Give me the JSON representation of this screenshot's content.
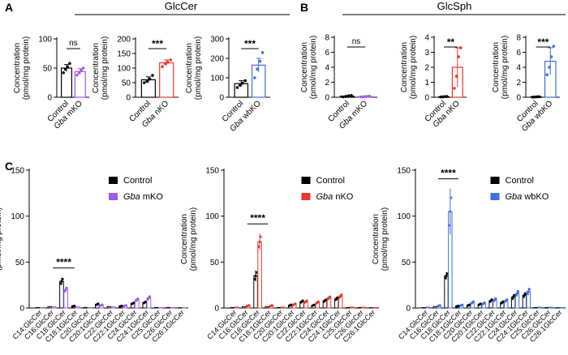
{
  "panel_labels": [
    "A",
    "B",
    "C"
  ],
  "headers": {
    "glccer": "GlcCer",
    "glcsph": "GlcSph"
  },
  "ylabel_line1": "Concentration",
  "ylabel_line2": "(pmol/mg protein)",
  "colors": {
    "control": "#000000",
    "mko": "#9d5cf0",
    "nko": "#e8372b",
    "wbko": "#3f6fe0"
  },
  "chart_data": [
    {
      "id": "A1",
      "type": "bar",
      "ylim": [
        0,
        100
      ],
      "yticks": [
        0,
        50,
        100
      ],
      "categories": [
        "Control",
        "Gba mKO"
      ],
      "gene": "Gba",
      "model": "mKO",
      "color_key": "mko",
      "values": [
        50,
        44
      ],
      "errors": [
        6,
        5
      ],
      "points": [
        [
          42,
          48,
          52,
          58
        ],
        [
          38,
          42,
          46,
          50
        ]
      ],
      "significance": "ns"
    },
    {
      "id": "A2",
      "type": "bar",
      "ylim": [
        0,
        200
      ],
      "yticks": [
        0,
        50,
        100,
        150,
        200
      ],
      "categories": [
        "Control",
        "Gba nKO"
      ],
      "gene": "Gba",
      "model": "nKO",
      "color_key": "nko",
      "values": [
        60,
        118
      ],
      "errors": [
        10,
        10
      ],
      "points": [
        [
          50,
          55,
          62,
          75
        ],
        [
          105,
          115,
          120,
          128
        ]
      ],
      "significance": "***"
    },
    {
      "id": "A3",
      "type": "bar",
      "ylim": [
        0,
        300
      ],
      "yticks": [
        0,
        100,
        200,
        300
      ],
      "categories": [
        "Control",
        "Gba wbKO"
      ],
      "gene": "Gba",
      "model": "wbKO",
      "color_key": "wbko",
      "values": [
        70,
        165
      ],
      "errors": [
        15,
        35
      ],
      "points": [
        [
          50,
          62,
          72,
          85
        ],
        [
          100,
          145,
          185,
          230
        ]
      ],
      "significance": "***"
    },
    {
      "id": "B1",
      "type": "bar",
      "ylim": [
        0,
        8
      ],
      "yticks": [
        0,
        2,
        4,
        6,
        8
      ],
      "categories": [
        "Control",
        "Gba mKO"
      ],
      "gene": "Gba",
      "model": "mKO",
      "color_key": "mko",
      "values": [
        0.15,
        0.1
      ],
      "errors": [
        0.08,
        0.05
      ],
      "points": [
        [
          0.05,
          0.1,
          0.2,
          0.25
        ],
        [
          0.05,
          0.08,
          0.12,
          0.15
        ]
      ],
      "significance": "ns"
    },
    {
      "id": "B2",
      "type": "bar",
      "ylim": [
        0,
        4
      ],
      "yticks": [
        0,
        1,
        2,
        3,
        4
      ],
      "categories": [
        "Control",
        "Gba nKO"
      ],
      "gene": "Gba",
      "model": "nKO",
      "color_key": "nko",
      "values": [
        0.03,
        2.0
      ],
      "errors": [
        0.02,
        1.3
      ],
      "points": [
        [
          0.02,
          0.03,
          0.04,
          0.05
        ],
        [
          0.6,
          1.4,
          2.7,
          3.3
        ]
      ],
      "significance": "**"
    },
    {
      "id": "B3",
      "type": "bar",
      "ylim": [
        0,
        8
      ],
      "yticks": [
        0,
        2,
        4,
        6,
        8
      ],
      "categories": [
        "Control",
        "Gba wbKO"
      ],
      "gene": "Gba",
      "model": "wbKO",
      "color_key": "wbko",
      "values": [
        0.05,
        4.8
      ],
      "errors": [
        0.03,
        1.8
      ],
      "points": [
        [
          0.02,
          0.04,
          0.06,
          0.08
        ],
        [
          3.0,
          4.0,
          5.4,
          6.8
        ]
      ],
      "significance": "***"
    },
    {
      "id": "C1",
      "type": "bar",
      "ylim": [
        0,
        150
      ],
      "yticks": [
        0,
        50,
        100,
        150
      ],
      "categories": [
        "C14:GlcCer",
        "C16:GlcCer",
        "C18:GlcCer",
        "C18:1GlcCer",
        "C20:GlcCer",
        "C20:1GlcCer",
        "C22:GlcCer",
        "C22:1GlcCer",
        "C24:GlcCer",
        "C24:1GlcCer",
        "C25:GlcCer",
        "C26:GlcCer",
        "C26:1GlcCer"
      ],
      "gene": "Gba",
      "model": "mKO",
      "color_key": "mko",
      "legend": [
        "Control",
        "Gba mKO"
      ],
      "series": [
        {
          "values": [
            0.5,
            1.5,
            29,
            2,
            0.6,
            4,
            1.5,
            2,
            5,
            6,
            0.5,
            0.5,
            0.3
          ],
          "errors": [
            0.2,
            0.4,
            4,
            0.5,
            0.2,
            1,
            0.4,
            0.5,
            1,
            1.2,
            0.2,
            0.2,
            0.1
          ]
        },
        {
          "values": [
            0.5,
            1.2,
            20,
            1.5,
            0.5,
            3,
            1.2,
            2.5,
            9,
            11,
            0.4,
            0.4,
            0.3
          ],
          "errors": [
            0.2,
            0.3,
            3,
            0.4,
            0.2,
            0.8,
            0.3,
            0.6,
            2,
            2.5,
            0.2,
            0.2,
            0.1
          ]
        }
      ],
      "significance": {
        "category_index": 2,
        "label": "****"
      }
    },
    {
      "id": "C2",
      "type": "bar",
      "ylim": [
        0,
        150
      ],
      "yticks": [
        0,
        50,
        100,
        150
      ],
      "categories": [
        "C14:GlcCer",
        "C16:GlcCer",
        "C18:GlcCer",
        "C18:1GlcCer",
        "C20:GlcCer",
        "C20:1GlcCer",
        "C22:GlcCer",
        "C22:1GlcCer",
        "C24:GlcCer",
        "C24:1GlcCer",
        "C25:GlcCer",
        "C26:GlcCer",
        "C26:1GlcCer"
      ],
      "gene": "Gba",
      "model": "nKO",
      "color_key": "nko",
      "legend": [
        "Control",
        "Gba nKO"
      ],
      "series": [
        {
          "values": [
            0.5,
            1.5,
            35,
            1.5,
            0.5,
            3,
            7,
            3,
            8,
            10,
            0.5,
            0.5,
            0.3
          ],
          "errors": [
            0.2,
            0.4,
            6,
            0.4,
            0.2,
            0.8,
            1.5,
            0.7,
            1.5,
            2,
            0.2,
            0.2,
            0.1
          ]
        },
        {
          "values": [
            1,
            2.5,
            72,
            2.5,
            1,
            4,
            7,
            6,
            11,
            13,
            1,
            0.8,
            0.5
          ],
          "errors": [
            0.3,
            0.6,
            9,
            0.6,
            0.3,
            1,
            1.5,
            1.5,
            2,
            2.5,
            0.3,
            0.2,
            0.2
          ]
        }
      ],
      "significance": {
        "category_index": 2,
        "label": "****"
      }
    },
    {
      "id": "C3",
      "type": "bar",
      "ylim": [
        0,
        150
      ],
      "yticks": [
        0,
        50,
        100,
        150
      ],
      "categories": [
        "C14:GlcCer",
        "C16:GlcCer",
        "C18:GlcCer",
        "C18:1GlcCer",
        "C20:GlcCer",
        "C20:1GlcCer",
        "C22:GlcCer",
        "C22:1GlcCer",
        "C24:GlcCer",
        "C24:1GlcCer",
        "C25:GlcCer",
        "C26:GlcCer",
        "C26:1GlcCer"
      ],
      "gene": "Gba",
      "model": "wbKO",
      "color_key": "wbko",
      "legend": [
        "Control",
        "Gba wbKO"
      ],
      "series": [
        {
          "values": [
            0.5,
            1.5,
            35,
            2,
            3,
            4,
            8,
            6,
            12,
            14,
            0.5,
            0.5,
            0.3
          ],
          "errors": [
            0.2,
            0.4,
            4,
            0.5,
            0.8,
            1,
            2,
            1.5,
            3,
            3,
            0.2,
            0.2,
            0.1
          ]
        },
        {
          "values": [
            1,
            2.5,
            105,
            3,
            6,
            5,
            9,
            8,
            16,
            18,
            1,
            0.8,
            0.5
          ],
          "errors": [
            0.3,
            0.6,
            25,
            0.8,
            1.5,
            1.2,
            2,
            2,
            3.5,
            4,
            0.3,
            0.2,
            0.2
          ]
        }
      ],
      "significance": {
        "category_index": 2,
        "label": "****"
      }
    }
  ]
}
